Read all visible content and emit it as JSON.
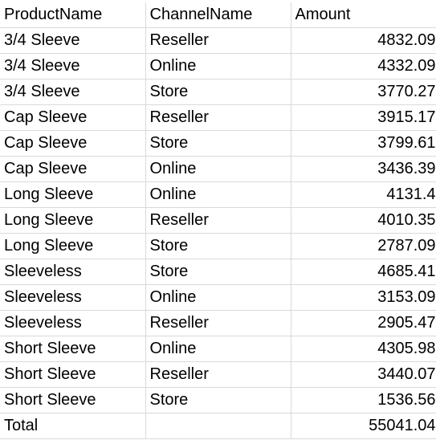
{
  "sheet": {
    "headers": [
      "ProductName",
      "ChannelName",
      "Amount"
    ],
    "rows": [
      [
        "3/4 Sleeve",
        "Reseller",
        "4832.09"
      ],
      [
        "3/4 Sleeve",
        "Online",
        "4332.09"
      ],
      [
        "3/4 Sleeve",
        "Store",
        "3770.27"
      ],
      [
        "Cap Sleeve",
        "Reseller",
        "3915.17"
      ],
      [
        "Cap Sleeve",
        "Store",
        "3799.61"
      ],
      [
        "Cap Sleeve",
        "Online",
        "3436.39"
      ],
      [
        "Long Sleeve",
        "Online",
        "4131.4"
      ],
      [
        "Long Sleeve",
        "Reseller",
        "4010.35"
      ],
      [
        "Long Sleeve",
        "Store",
        "2787.09"
      ],
      [
        "Sleeveless",
        "Store",
        "4685.41"
      ],
      [
        "Sleeveless",
        "Online",
        "3153.09"
      ],
      [
        "Sleeveless",
        "Reseller",
        "2905.47"
      ],
      [
        "Short Sleeve",
        "Online",
        "4305.98"
      ],
      [
        "Short Sleeve",
        "Reseller",
        "3440.07"
      ],
      [
        "Short Sleeve",
        "Store",
        "1536.56"
      ]
    ],
    "total": {
      "label": "Total",
      "channel": "",
      "amount": "55041.04"
    }
  }
}
